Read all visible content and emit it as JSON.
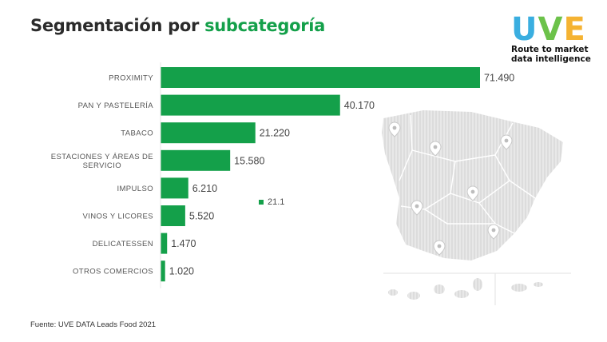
{
  "title": {
    "prefix": "Segmentación por",
    "highlight": "subcategoría"
  },
  "logo": {
    "letters": [
      {
        "char": "U",
        "color": "#3aaee0"
      },
      {
        "char": "V",
        "color": "#6cc24a"
      },
      {
        "char": "E",
        "color": "#f5b332"
      }
    ],
    "tagline_line1": "Route to market",
    "tagline_line2": "data intelligence"
  },
  "chart_data": {
    "type": "bar",
    "orientation": "horizontal",
    "categories": [
      [
        "PROXIMITY"
      ],
      [
        "PAN Y PASTELERÍA"
      ],
      [
        "TABACO"
      ],
      [
        "ESTACIONES Y ÁREAS DE",
        "SERVICIO"
      ],
      [
        "IMPULSO"
      ],
      [
        "VINOS Y LICORES"
      ],
      [
        "DELICATESSEN"
      ],
      [
        "OTROS COMERCIOS"
      ]
    ],
    "values": [
      71490,
      40170,
      21220,
      15580,
      6210,
      5520,
      1470,
      1020
    ],
    "value_labels": [
      "71.490",
      "40.170",
      "21.220",
      "15.580",
      "6.210",
      "5.520",
      "1.470",
      "1.020"
    ],
    "xlim": [
      0,
      71490
    ],
    "bar_color": "#14a04a",
    "legend": {
      "label": "21.1",
      "placement": "center"
    },
    "grid": false
  },
  "source": "Fuente: UVE DATA Leads Food 2021"
}
